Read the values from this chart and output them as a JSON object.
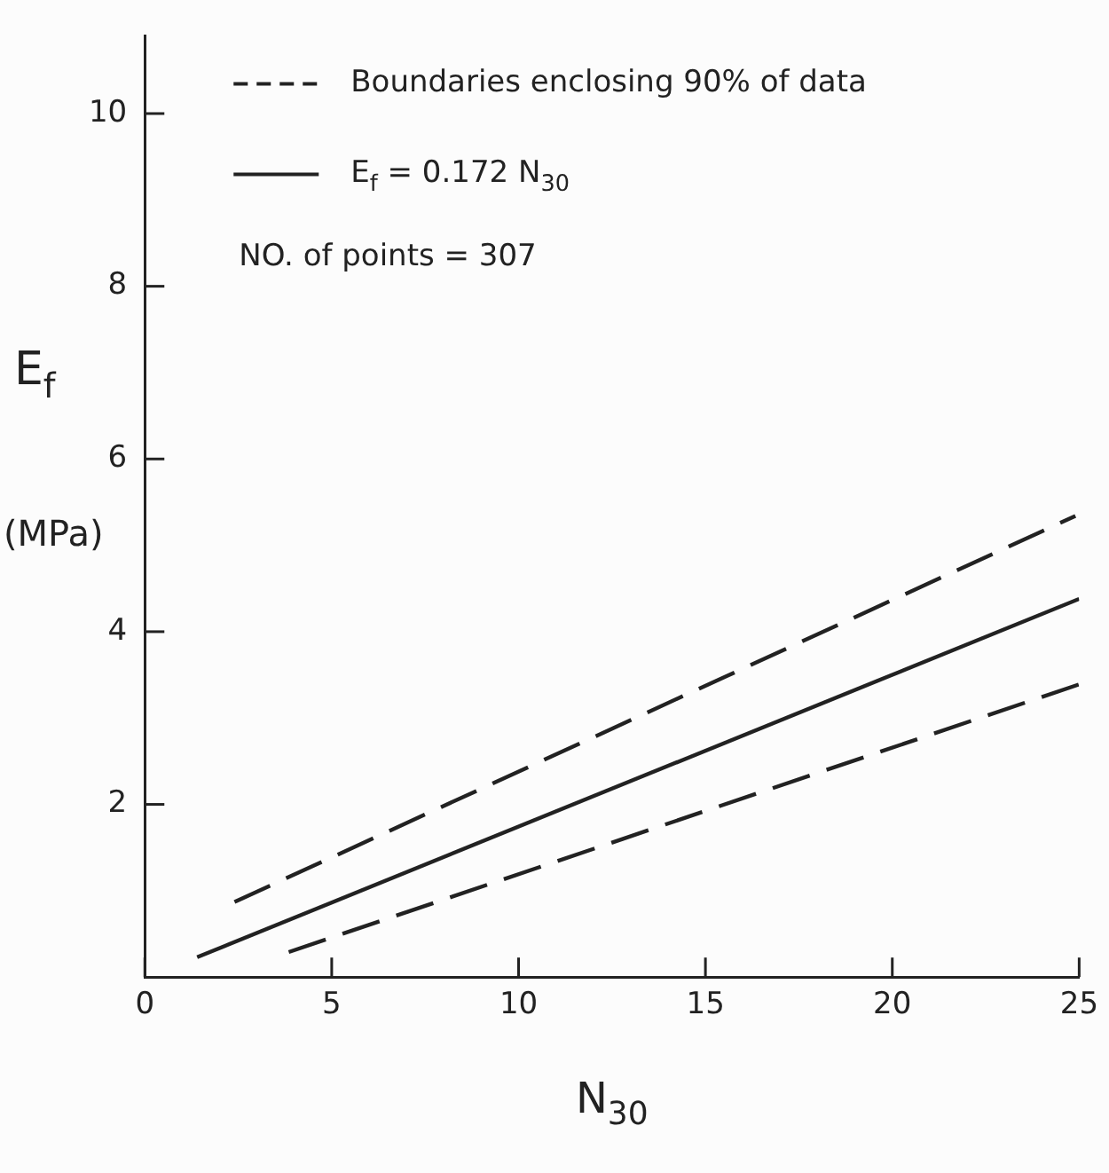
{
  "chart_data": {
    "type": "line",
    "xlabel": "N$_{30}$",
    "ylabel": "E$_{f}$ (MPa)",
    "xlim": [
      0,
      25
    ],
    "xticks": [
      0,
      5,
      10,
      15,
      20,
      25
    ],
    "ylim": [
      0,
      10.9
    ],
    "yticks": [
      2,
      4,
      6,
      8,
      10
    ],
    "grid": false,
    "legend": "top left",
    "marker": "none",
    "series": [
      {
        "name": "Boundaries enclosing 90% of data",
        "color": "#222222",
        "line_style": "dashed",
        "x": [
          2.4,
          24.9
        ],
        "values": [
          0.87,
          5.34
        ]
      },
      {
        "name": "E$_{f}$ = 0.172 N$_{30}$",
        "color": "#222222",
        "line_style": "solid",
        "x": [
          1.4,
          25
        ],
        "values": [
          0.23,
          4.38
        ]
      },
      {
        "color": "#222222",
        "line_style": "dashed",
        "x": [
          3.85,
          25
        ],
        "values": [
          0.29,
          3.39
        ]
      }
    ],
    "annotations": [
      "NO. of points = 307"
    ]
  }
}
